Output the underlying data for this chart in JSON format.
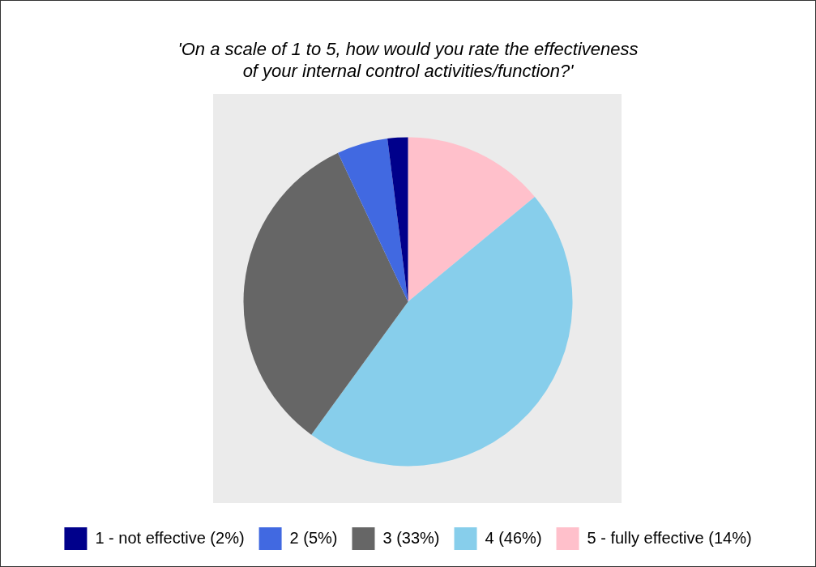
{
  "chart_data": {
    "type": "pie",
    "title": "'On a scale of 1 to 5, how would you rate the effectiveness\nof your internal control activities/function?'",
    "categories": [
      "1 - not effective (2%)",
      "2 (5%)",
      "3 (33%)",
      "4 (46%)",
      "5 - fully effective (14%)"
    ],
    "values": [
      2,
      5,
      33,
      46,
      14
    ],
    "colors": [
      "#00008b",
      "#4169e1",
      "#666666",
      "#87ceeb",
      "#ffc0cb"
    ],
    "legend": "bottom"
  }
}
